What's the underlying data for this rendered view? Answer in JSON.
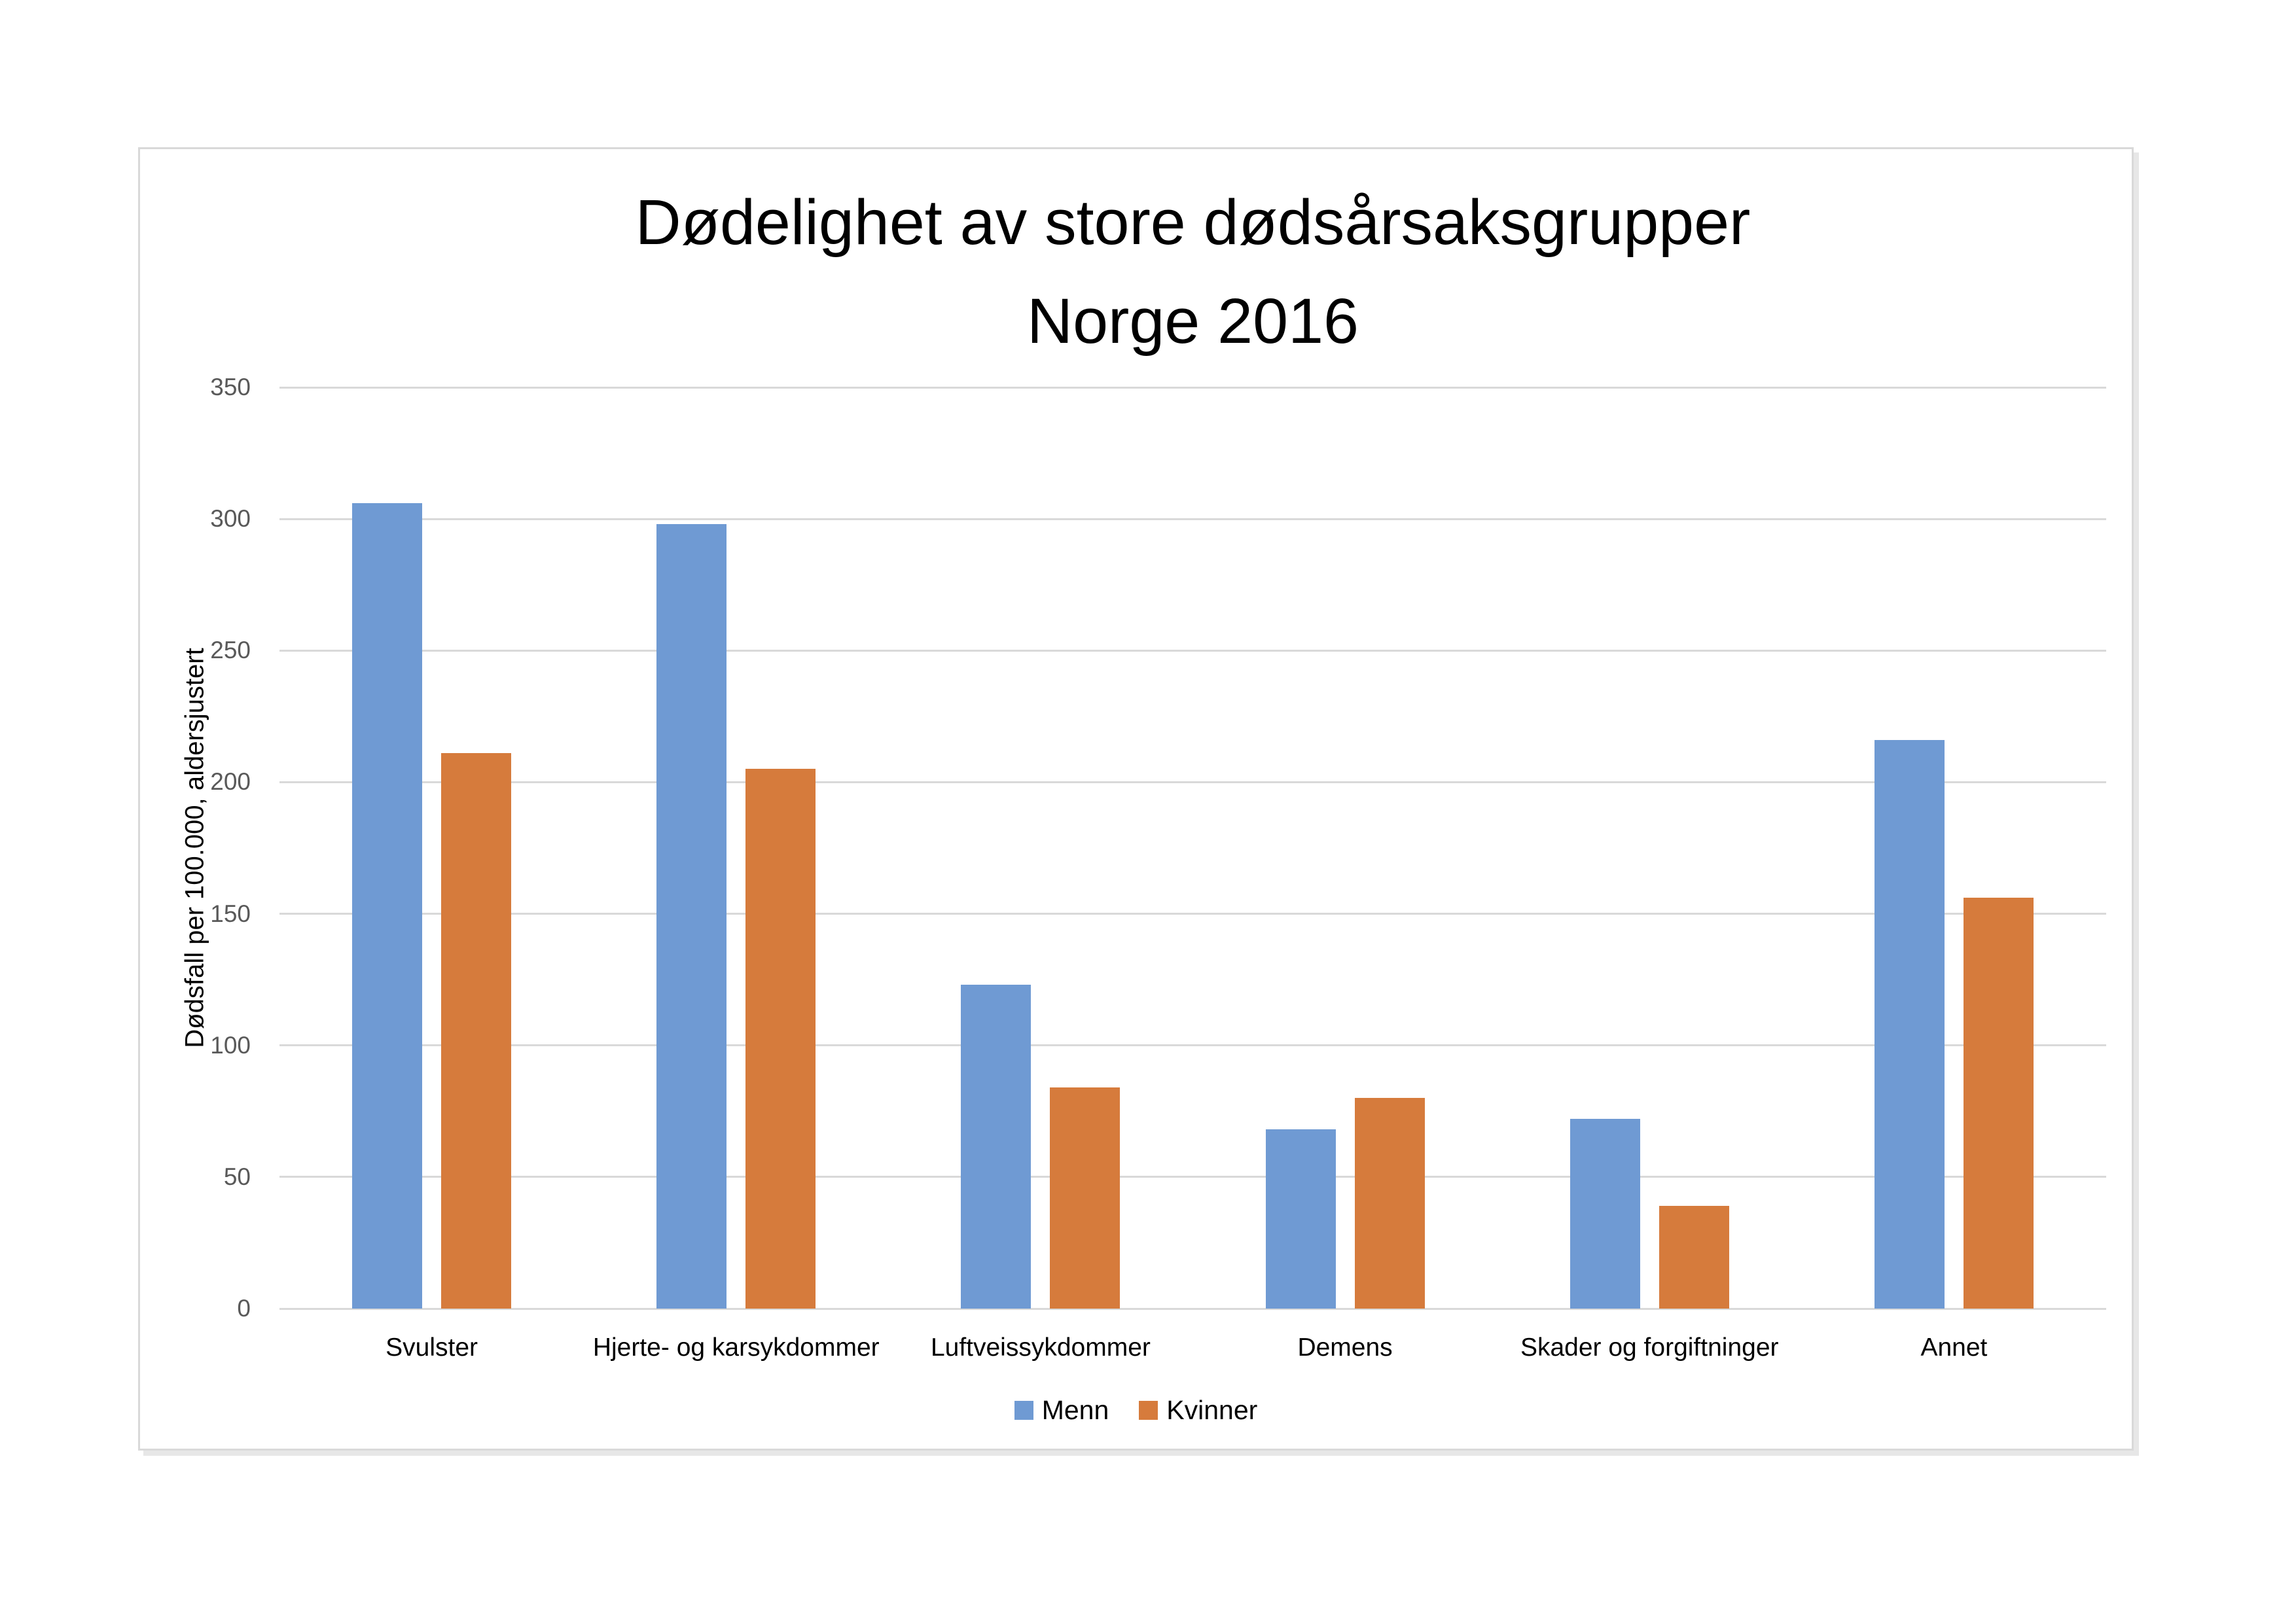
{
  "title": {
    "line1": "Dødelighet av store dødsårsaksgrupper",
    "line2": "Norge 2016"
  },
  "chart_data": {
    "type": "bar",
    "title": "Dødelighet av store dødsårsaksgrupper Norge 2016",
    "xlabel": "",
    "ylabel": "Dødsfall per 100.000, aldersjustert",
    "ylim": [
      0,
      350
    ],
    "yticks": [
      0,
      50,
      100,
      150,
      200,
      250,
      300,
      350
    ],
    "grid": true,
    "legend_position": "bottom",
    "categories": [
      "Svulster",
      "Hjerte- og karsykdommer",
      "Luftveissykdommer",
      "Demens",
      "Skader og forgiftninger",
      "Annet"
    ],
    "series": [
      {
        "name": "Menn",
        "color": "#6F9AD3",
        "values": [
          306,
          298,
          123,
          68,
          72,
          216
        ]
      },
      {
        "name": "Kvinner",
        "color": "#D67B3C",
        "values": [
          211,
          205,
          84,
          80,
          39,
          156
        ]
      }
    ]
  },
  "colors": {
    "gridline": "#D9D9D9",
    "tick_text": "#595959",
    "frame_border": "#D9D9D9"
  }
}
